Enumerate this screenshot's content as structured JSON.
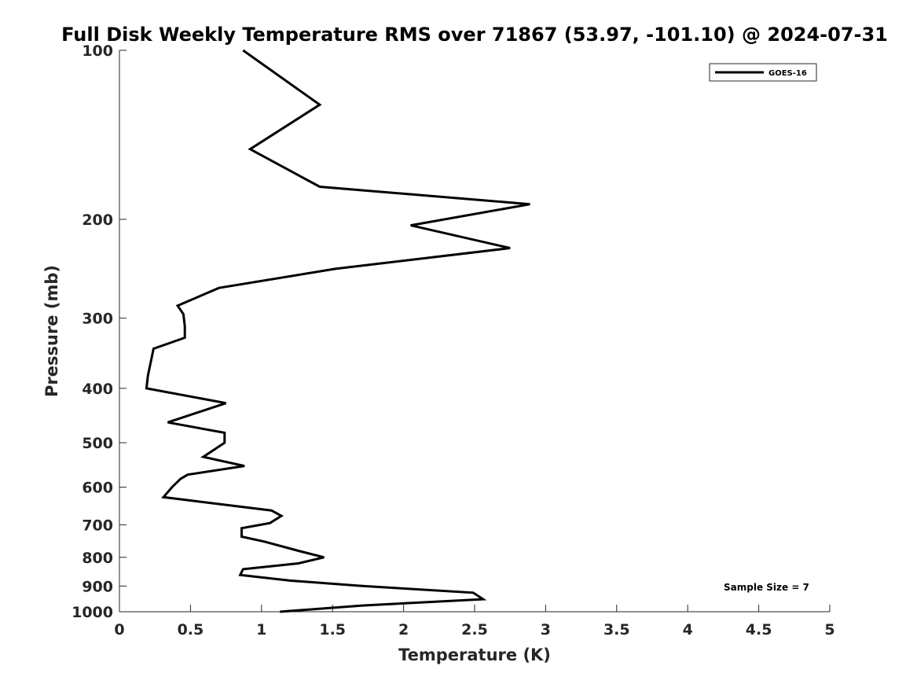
{
  "chart_data": {
    "type": "line",
    "title": "Full Disk Weekly Temperature RMS over 71867 (53.97, -101.10) @ 2024-07-31",
    "xlabel": "Temperature (K)",
    "ylabel": "Pressure (mb)",
    "xlim": [
      0,
      5
    ],
    "ylim": [
      1000,
      100
    ],
    "yscale": "log",
    "x_ticks": [
      0,
      0.5,
      1,
      1.5,
      2,
      2.5,
      3,
      3.5,
      4,
      4.5,
      5
    ],
    "x_tick_labels": [
      "0",
      "0.5",
      "1",
      "1.5",
      "2",
      "2.5",
      "3",
      "3.5",
      "4",
      "4.5",
      "5"
    ],
    "y_ticks": [
      100,
      200,
      300,
      400,
      500,
      600,
      700,
      800,
      900,
      1000
    ],
    "y_tick_labels": [
      "100",
      "200",
      "300",
      "400",
      "500",
      "600",
      "700",
      "800",
      "900",
      "1000"
    ],
    "grid": false,
    "legend_position": "top-right",
    "annotation": "Sample Size = 7",
    "line_color": "#000000",
    "series": [
      {
        "name": "GOES-16",
        "x": [
          0.87,
          1.41,
          0.92,
          1.41,
          2.89,
          2.05,
          2.75,
          1.52,
          0.7,
          0.41,
          0.45,
          0.46,
          0.46,
          0.24,
          0.2,
          0.19,
          0.64,
          0.75,
          0.34,
          0.74,
          0.74,
          0.59,
          0.88,
          0.48,
          0.43,
          0.37,
          0.31,
          1.07,
          1.14,
          1.06,
          0.86,
          0.86,
          1.02,
          1.27,
          1.44,
          1.26,
          0.87,
          0.85,
          1.2,
          1.71,
          2.49,
          2.56,
          1.71,
          1.13
        ],
        "y": [
          100,
          125,
          150,
          175,
          188,
          205,
          225,
          245,
          265,
          285,
          295,
          310,
          325,
          340,
          380,
          400,
          420,
          425,
          460,
          480,
          500,
          530,
          550,
          570,
          580,
          600,
          625,
          660,
          675,
          695,
          710,
          735,
          750,
          780,
          800,
          820,
          840,
          860,
          880,
          900,
          925,
          950,
          975,
          1000
        ]
      }
    ]
  }
}
